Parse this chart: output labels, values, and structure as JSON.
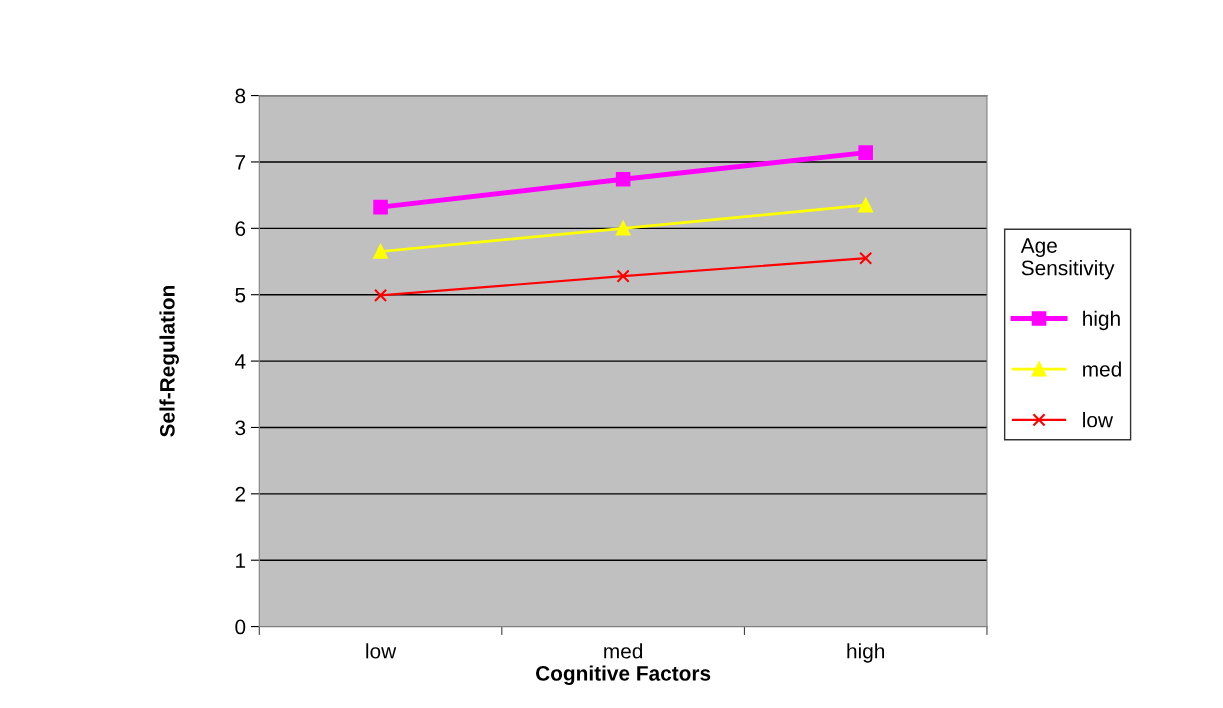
{
  "chart_data": {
    "type": "line",
    "xlabel": "Cognitive Factors",
    "ylabel": "Self-Regulation",
    "legend_title": "Age\nSensitivity",
    "categories": [
      "low",
      "med",
      "high"
    ],
    "series": [
      {
        "name": "high",
        "color": "#ff00ff",
        "marker": "square",
        "values": [
          6.32,
          6.74,
          7.14
        ]
      },
      {
        "name": "med",
        "color": "#ffff00",
        "marker": "triangle",
        "values": [
          5.65,
          6.0,
          6.35
        ]
      },
      {
        "name": "low",
        "color": "#ff0000",
        "marker": "cross",
        "values": [
          4.99,
          5.28,
          5.55
        ]
      }
    ],
    "ylim": [
      0,
      8
    ],
    "yticks": [
      0,
      1,
      2,
      3,
      4,
      5,
      6,
      7,
      8
    ],
    "grid": "y",
    "legend": "right",
    "line_style": "solid"
  }
}
